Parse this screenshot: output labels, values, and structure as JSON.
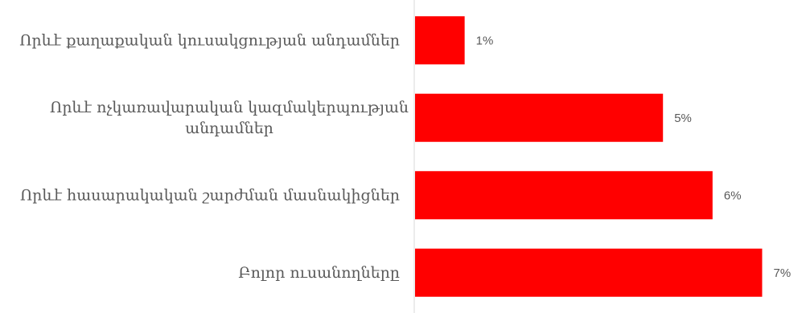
{
  "chart_data": {
    "type": "bar",
    "orientation": "horizontal",
    "categories": [
      [
        "Որևէ քաղաքական կուսակցության անդամներ"
      ],
      [
        "Որևէ ոչկառավարական կազմակերպության",
        "անդամներ"
      ],
      [
        "Որևէ հասարակական շարժման մասնակիցներ"
      ],
      [
        "Բոլոր ուսանողները"
      ]
    ],
    "values": [
      1,
      5,
      6,
      7
    ],
    "value_labels": [
      "1%",
      "5%",
      "6%",
      "7%"
    ],
    "xlim": [
      0,
      7.3
    ],
    "grid": false,
    "colors": {
      "bar": "#ff0000",
      "axis": "#d9d9d9",
      "text": "#595959"
    }
  }
}
